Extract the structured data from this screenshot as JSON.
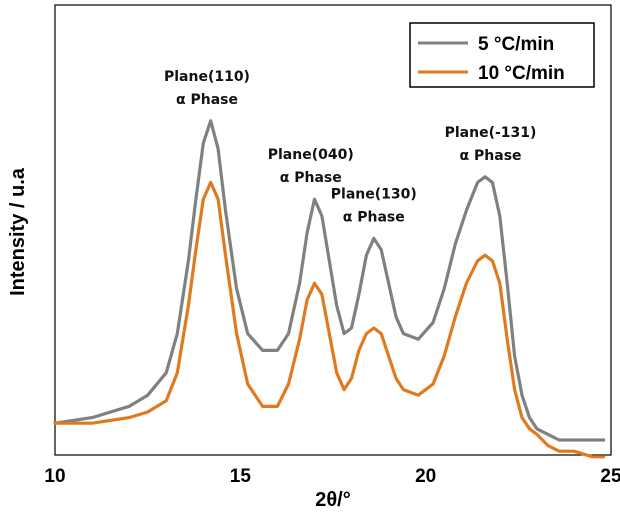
{
  "chart_data": {
    "type": "line",
    "title": "",
    "xlabel": "2θ/°",
    "ylabel": "Intensity / u.a",
    "xlim": [
      10,
      25
    ],
    "xticks": [
      10,
      15,
      20,
      25
    ],
    "ylim": [
      0,
      1
    ],
    "y_ticks_shown": false,
    "grid": false,
    "legend_position": "top-right",
    "legend_frame": true,
    "colors": {
      "5 °C/min": "#808080",
      "10 °C/min": "#e07a1f"
    },
    "series": [
      {
        "name": "5 °C/min",
        "color": "#808080",
        "x": [
          10.0,
          11.0,
          12.0,
          12.5,
          13.0,
          13.3,
          13.6,
          13.8,
          14.0,
          14.2,
          14.4,
          14.6,
          14.9,
          15.2,
          15.6,
          16.0,
          16.3,
          16.6,
          16.8,
          17.0,
          17.2,
          17.4,
          17.6,
          17.8,
          18.0,
          18.2,
          18.4,
          18.6,
          18.8,
          19.0,
          19.2,
          19.4,
          19.8,
          20.2,
          20.5,
          20.8,
          21.1,
          21.4,
          21.6,
          21.8,
          22.0,
          22.2,
          22.4,
          22.6,
          22.8,
          23.0,
          23.3,
          23.6,
          24.0,
          24.5,
          24.8
        ],
        "y": [
          0.03,
          0.04,
          0.06,
          0.08,
          0.12,
          0.19,
          0.32,
          0.43,
          0.53,
          0.57,
          0.52,
          0.41,
          0.27,
          0.19,
          0.16,
          0.16,
          0.19,
          0.28,
          0.37,
          0.43,
          0.4,
          0.32,
          0.24,
          0.19,
          0.2,
          0.26,
          0.33,
          0.36,
          0.34,
          0.28,
          0.22,
          0.19,
          0.18,
          0.21,
          0.27,
          0.35,
          0.41,
          0.46,
          0.47,
          0.46,
          0.4,
          0.28,
          0.15,
          0.08,
          0.04,
          0.02,
          0.01,
          0.0,
          0.0,
          0.0,
          0.0
        ]
      },
      {
        "name": "10 °C/min",
        "color": "#e07a1f",
        "x": [
          10.0,
          11.0,
          12.0,
          12.5,
          13.0,
          13.3,
          13.6,
          13.8,
          14.0,
          14.2,
          14.4,
          14.6,
          14.9,
          15.2,
          15.6,
          16.0,
          16.3,
          16.6,
          16.8,
          17.0,
          17.2,
          17.4,
          17.6,
          17.8,
          18.0,
          18.2,
          18.4,
          18.6,
          18.8,
          19.0,
          19.2,
          19.4,
          19.8,
          20.2,
          20.5,
          20.8,
          21.1,
          21.4,
          21.6,
          21.8,
          22.0,
          22.2,
          22.4,
          22.6,
          22.8,
          23.0,
          23.3,
          23.6,
          24.0,
          24.5,
          24.8
        ],
        "y": [
          0.03,
          0.03,
          0.04,
          0.05,
          0.07,
          0.12,
          0.24,
          0.34,
          0.43,
          0.46,
          0.43,
          0.33,
          0.19,
          0.1,
          0.06,
          0.06,
          0.1,
          0.18,
          0.25,
          0.28,
          0.26,
          0.19,
          0.12,
          0.09,
          0.11,
          0.16,
          0.19,
          0.2,
          0.19,
          0.15,
          0.11,
          0.09,
          0.08,
          0.1,
          0.15,
          0.22,
          0.28,
          0.32,
          0.33,
          0.32,
          0.28,
          0.18,
          0.09,
          0.04,
          0.02,
          0.01,
          -0.01,
          -0.02,
          -0.02,
          -0.03,
          -0.03
        ]
      }
    ],
    "annotations": [
      {
        "x": 14.1,
        "line1": "Plane(110)",
        "line2": "α Phase"
      },
      {
        "x": 16.9,
        "line1": "Plane(040)",
        "line2": "α Phase"
      },
      {
        "x": 18.6,
        "line1": "Plane(130)",
        "line2": "α Phase"
      },
      {
        "x": 21.75,
        "line1": "Plane(-131)",
        "line2": "α Phase"
      }
    ]
  }
}
